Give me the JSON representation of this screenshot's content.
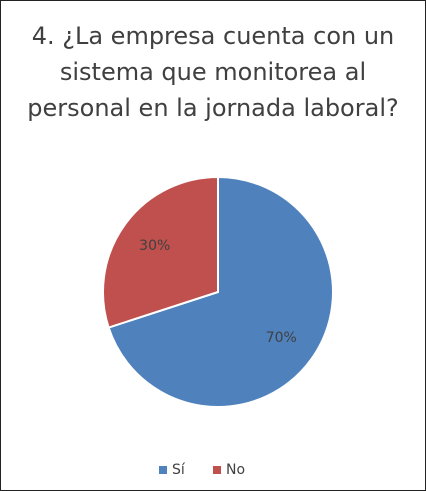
{
  "chart_data": {
    "type": "pie",
    "title": "4. ¿La empresa cuenta con un sistema que monitorea al personal en la jornada laboral?",
    "categories": [
      "Sí",
      "No"
    ],
    "values": [
      70,
      30
    ],
    "value_labels": [
      "70%",
      "30%"
    ],
    "colors": [
      "#4f81bd",
      "#c0504d"
    ],
    "legend": "bottom"
  }
}
